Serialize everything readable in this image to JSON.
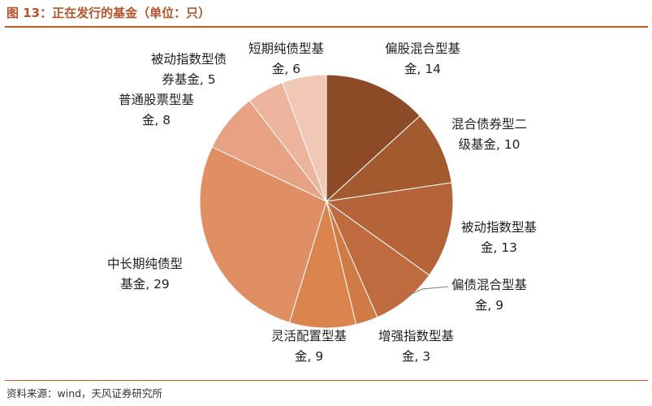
{
  "title": "图 13：正在发行的基金（单位：只）",
  "source": "资料来源：wind，天风证券研究所",
  "chart_data": {
    "type": "pie",
    "slices": [
      {
        "name": "偏股混合型基金",
        "value": 14,
        "color": "#8c4a26",
        "label_lines": [
          "偏股混合型基",
          "金, 14"
        ]
      },
      {
        "name": "混合债券型二级基金",
        "value": 10,
        "color": "#a35a2e",
        "label_lines": [
          "混合债券型二",
          "级基金, 10"
        ]
      },
      {
        "name": "被动指数型基金",
        "value": 13,
        "color": "#b5643a",
        "label_lines": [
          "被动指数型基",
          "金, 13"
        ]
      },
      {
        "name": "偏债混合型基金",
        "value": 9,
        "color": "#c06b3f",
        "label_lines": [
          "偏债混合型基",
          "金, 9"
        ]
      },
      {
        "name": "增强指数型基金",
        "value": 3,
        "color": "#d07a46",
        "label_lines": [
          "增强指数型基",
          "金, 3"
        ]
      },
      {
        "name": "灵活配置型基金",
        "value": 9,
        "color": "#dc844e",
        "label_lines": [
          "灵活配置型基",
          "金, 9"
        ]
      },
      {
        "name": "中长期纯债型基金",
        "value": 29,
        "color": "#e08e63",
        "label_lines": [
          "中长期纯债型",
          "基金, 29"
        ]
      },
      {
        "name": "普通股票型基金",
        "value": 8,
        "color": "#e7a183",
        "label_lines": [
          "普通股票型基",
          "金, 8"
        ]
      },
      {
        "name": "被动指数型债券基金",
        "value": 5,
        "color": "#ecb49c",
        "label_lines": [
          "被动指数型债",
          "券基金, 5"
        ]
      },
      {
        "name": "短期纯债型基金",
        "value": 6,
        "color": "#f1c8b6",
        "label_lines": [
          "短期纯债型基",
          "金, 6"
        ]
      }
    ]
  }
}
